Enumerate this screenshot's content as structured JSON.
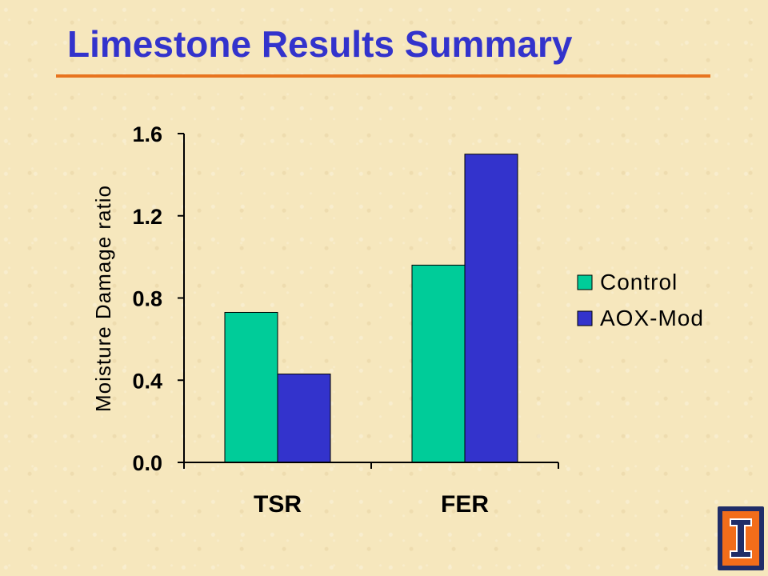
{
  "slide": {
    "title": "Limestone Results Summary"
  },
  "colors": {
    "title": "#3333cc",
    "rule": "#e8741e",
    "background": "#f6e7bd",
    "control": "#00cc99",
    "aox": "#3333cc"
  },
  "chart_data": {
    "type": "bar",
    "categories": [
      "TSR",
      "FER"
    ],
    "series": [
      {
        "name": "Control",
        "values": [
          0.73,
          0.96
        ],
        "color": "#00cc99"
      },
      {
        "name": "AOX-Mod",
        "values": [
          0.43,
          1.5
        ],
        "color": "#3333cc"
      }
    ],
    "ylabel": "Moisture Damage ratio",
    "ylim": [
      0,
      1.6
    ],
    "yticks": [
      "0.0",
      "0.4",
      "0.8",
      "1.2",
      "1.6"
    ],
    "ytick_values": [
      0,
      0.4,
      0.8,
      1.2,
      1.6
    ],
    "grid": false,
    "legend": "right"
  }
}
